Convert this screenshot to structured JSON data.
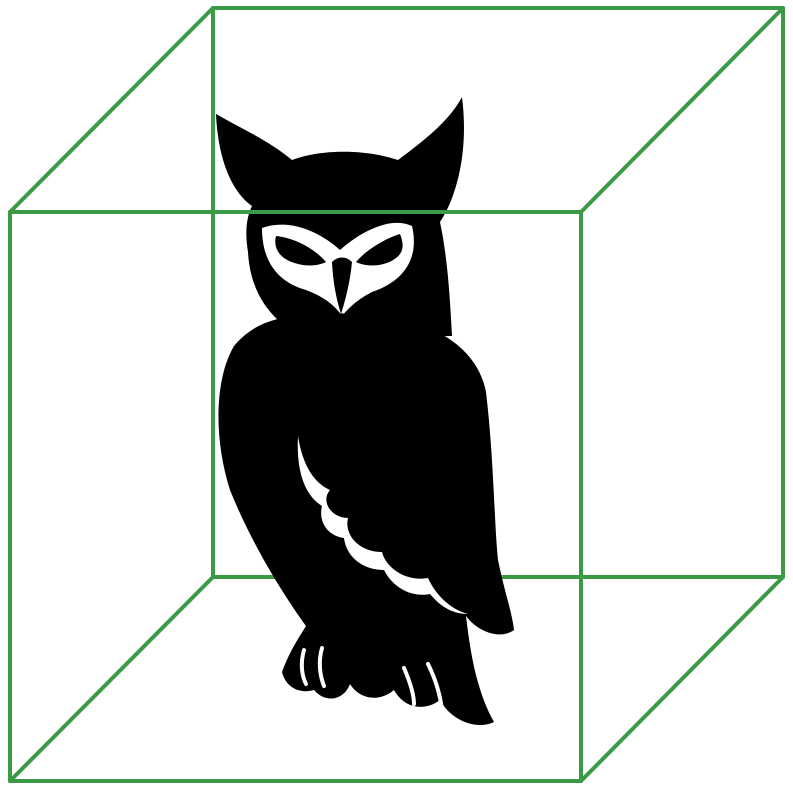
{
  "figure": {
    "subject": "owl-silhouette",
    "frame": "wireframe-cube"
  },
  "colors": {
    "background": "#ffffff",
    "cube_edge": "#3b9a45",
    "owl_body": "#000000",
    "owl_face": "#ffffff"
  }
}
